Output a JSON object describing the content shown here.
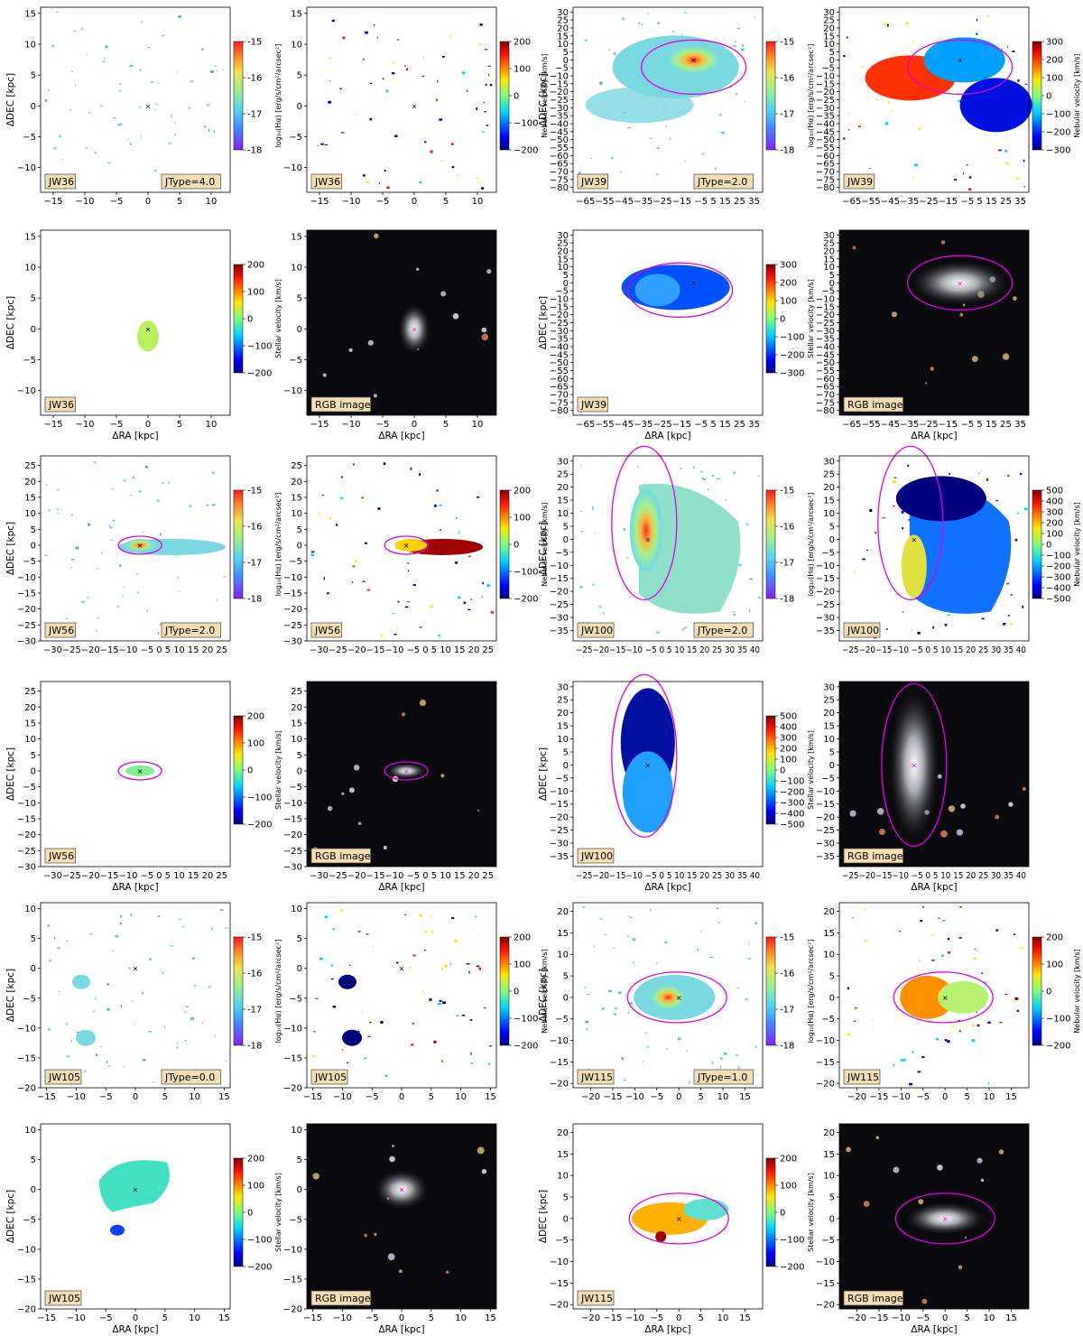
{
  "figure": {
    "rows": [
      {
        "left": {
          "name": "JW36",
          "xlabel": "ΔRA [kpc]",
          "ylabel": "ΔDEC [kpc]",
          "xticks": [
            -15,
            -10,
            -5,
            0,
            5,
            10
          ],
          "yticks": [
            -10,
            -5,
            0,
            5,
            10,
            15
          ],
          "xlim": [
            -17,
            13
          ],
          "ylim": [
            -14,
            16
          ],
          "jtype": "JType=4.0",
          "top": {
            "ha_cbar": {
              "label": "log₁₀(Hα) [erg/s/cm²/arcsec²]",
              "ticks": [
                "-15",
                "-16",
                "-17",
                "-18"
              ]
            },
            "vel_cbar": {
              "label": "Nebular velocity [km/s]",
              "ticks": [
                "200",
                "100",
                "0",
                "−100",
                "−200"
              ]
            }
          },
          "bottom": {
            "stellar_cbar": {
              "label": "Stellar velocity [km/s]",
              "ticks": [
                "200",
                "100",
                "0",
                "−100",
                "−200"
              ]
            },
            "rgb_label": "RGB image"
          }
        },
        "right": {
          "name": "JW39",
          "xlabel": "ΔRA [kpc]",
          "ylabel": "ΔDEC [kpc]",
          "xtick_text": "−65−55−45−35−25−15 −5 5 15 25 35",
          "yticks": [
            -80,
            -75,
            -70,
            -65,
            -60,
            -55,
            -50,
            -45,
            -40,
            -35,
            -30,
            -25,
            -20,
            -15,
            -10,
            -5,
            0,
            5,
            10,
            15,
            20,
            25,
            30
          ],
          "xlim": [
            -70,
            40
          ],
          "ylim": [
            -83,
            33
          ],
          "jtype": "JType=2.0",
          "top": {
            "ha_cbar": {
              "label": "log₁₀(Hα) [erg/s/cm²/arcsec²]",
              "ticks": [
                "-15",
                "-16",
                "-17",
                "-18"
              ]
            },
            "vel_cbar": {
              "label": "Nebular velocity [km/s]",
              "ticks": [
                "300",
                "200",
                "100",
                "0",
                "−100",
                "−200",
                "−300"
              ]
            }
          },
          "bottom": {
            "stellar_cbar": {
              "label": "Stellar velocity [km/s]",
              "ticks": [
                "300",
                "200",
                "100",
                "0",
                "−100",
                "−200",
                "−300"
              ]
            },
            "rgb_label": "RGB image"
          }
        }
      },
      {
        "left": {
          "name": "JW56",
          "xlabel": "ΔRA [kpc]",
          "ylabel": "ΔDEC [kpc]",
          "xtick_text": "−30−25−20−15−10 −5 0 5 10 15 20 25",
          "yticks": [
            -30,
            -25,
            -20,
            -15,
            -10,
            -5,
            0,
            5,
            10,
            15,
            20,
            25
          ],
          "xlim": [
            -32,
            29
          ],
          "ylim": [
            -30,
            28
          ],
          "jtype": "JType=2.0",
          "top": {
            "ha_cbar": {
              "label": "log₁₀(Hα) [erg/s/cm²/arcsec²]",
              "ticks": [
                "-15",
                "-16",
                "-17",
                "-18"
              ]
            },
            "vel_cbar": {
              "label": "Nebular velocity [km/s]",
              "ticks": [
                "200",
                "100",
                "0",
                "−100",
                "−200"
              ]
            }
          },
          "bottom": {
            "stellar_cbar": {
              "label": "Stellar velocity [km/s]",
              "ticks": [
                "200",
                "100",
                "0",
                "−100",
                "−200"
              ]
            },
            "rgb_label": "RGB image"
          }
        },
        "right": {
          "name": "JW100",
          "xlabel": "ΔRA [kpc]",
          "ylabel": "ΔDEC [kpc]",
          "xtick_text": "−25−20−15−10 −5 0 5 10 15 20 25 30 35 40",
          "yticks": [
            -35,
            -30,
            -25,
            -20,
            -15,
            -10,
            -5,
            0,
            5,
            10,
            15,
            20,
            25,
            30
          ],
          "xlim": [
            -28,
            43
          ],
          "ylim": [
            -39,
            32
          ],
          "jtype": "JType=2.0",
          "top": {
            "ha_cbar": {
              "label": "log₁₀(Hα) [erg/s/cm²/arcsec²]",
              "ticks": [
                "-15",
                "-16",
                "-17",
                "-18"
              ]
            },
            "vel_cbar": {
              "label": "Nebular velocity [km/s]",
              "ticks": [
                "500",
                "400",
                "300",
                "200",
                "100",
                "0",
                "−100",
                "−200",
                "−300",
                "−400",
                "−500"
              ]
            }
          },
          "bottom": {
            "stellar_cbar": {
              "label": "Stellar velocity [km/s]",
              "ticks": [
                "500",
                "400",
                "300",
                "200",
                "100",
                "0",
                "−100",
                "−200",
                "−300",
                "−400",
                "−500"
              ]
            },
            "rgb_label": "RGB image"
          }
        }
      },
      {
        "left": {
          "name": "JW105",
          "xlabel": "ΔRA [kpc]",
          "ylabel": "ΔDEC [kpc]",
          "xticks": [
            -15,
            -10,
            -5,
            0,
            5,
            10,
            15
          ],
          "yticks": [
            -20,
            -15,
            -10,
            -5,
            0,
            5,
            10
          ],
          "xlim": [
            -16,
            16
          ],
          "ylim": [
            -20,
            11
          ],
          "jtype": "JType=0.0",
          "top": {
            "ha_cbar": {
              "label": "log₁₀(Hα) [erg/s/cm²/arcsec²]",
              "ticks": [
                "-15",
                "-16",
                "-17",
                "-18"
              ]
            },
            "vel_cbar": {
              "label": "Nebular velocity [km/s]",
              "ticks": [
                "200",
                "100",
                "0",
                "−100",
                "−200"
              ]
            }
          },
          "bottom": {
            "stellar_cbar": {
              "label": "Stellar velocity [km/s]",
              "ticks": [
                "200",
                "100",
                "0",
                "−100",
                "−200"
              ]
            },
            "rgb_label": "RGB image"
          }
        },
        "right": {
          "name": "JW115",
          "xlabel": "ΔRA [kpc]",
          "ylabel": "ΔDEC [kpc]",
          "xticks": [
            -20,
            -15,
            -10,
            -5,
            0,
            5,
            10,
            15
          ],
          "yticks": [
            -20,
            -15,
            -10,
            -5,
            0,
            5,
            10,
            15,
            20
          ],
          "xlim": [
            -24,
            19
          ],
          "ylim": [
            -21,
            22
          ],
          "jtype": "JType=1.0",
          "top": {
            "ha_cbar": {
              "label": "log₁₀(Hα) [erg/s/cm²/arcsec²]",
              "ticks": [
                "-15",
                "-16",
                "-17",
                "-18"
              ]
            },
            "vel_cbar": {
              "label": "Nebular velocity [km/s]",
              "ticks": [
                "200",
                "100",
                "0",
                "−100",
                "−200"
              ]
            }
          },
          "bottom": {
            "stellar_cbar": {
              "label": "Stellar velocity [km/s]",
              "ticks": [
                "200",
                "100",
                "0",
                "−100",
                "−200"
              ]
            },
            "rgb_label": "RGB image"
          }
        }
      }
    ]
  }
}
